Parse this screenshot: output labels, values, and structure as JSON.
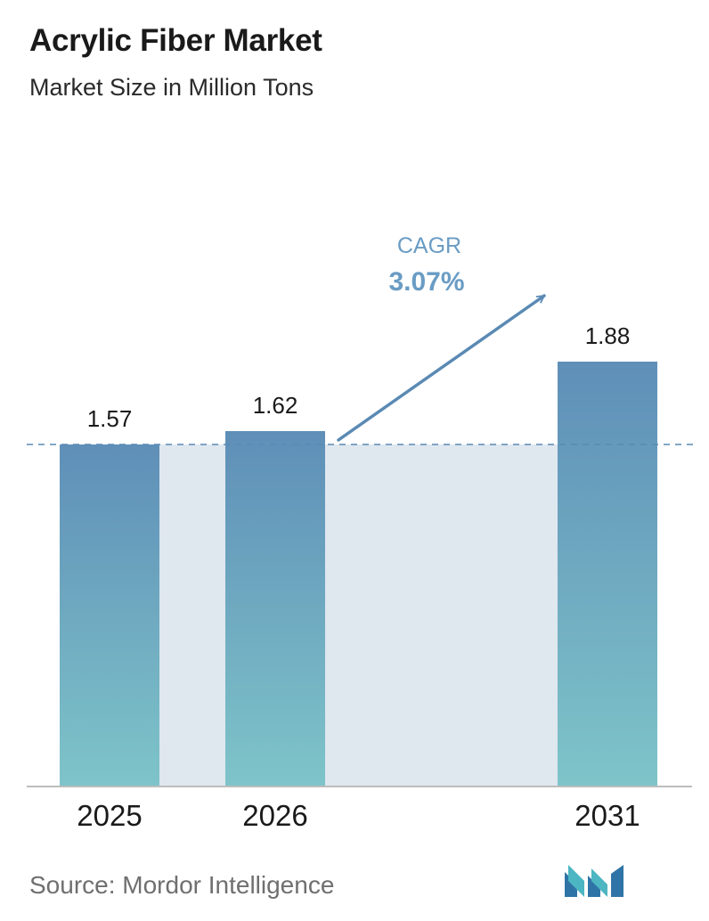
{
  "header": {
    "title": "Acrylic Fiber Market",
    "subtitle": "Market Size in Million Tons"
  },
  "chart_data": {
    "type": "bar",
    "categories": [
      "2025",
      "2026",
      "2031"
    ],
    "values": [
      1.57,
      1.62,
      1.88
    ],
    "value_labels": [
      "1.57",
      "1.62",
      "1.88"
    ],
    "title": "Acrylic Fiber Market",
    "subtitle": "Market Size in Million Tons",
    "xlabel": "",
    "ylabel": "",
    "grid": false,
    "reference_line": 1.57,
    "annotation": {
      "label": "CAGR",
      "value": "3.07%"
    },
    "colors": {
      "bar_top": "#5f8fb8",
      "bar_bottom": "#7ec4c9",
      "band": "#dfe7ef",
      "arrow": "#5a8ab4",
      "cagr_label": "#6a9cc4",
      "axis": "#bdbdbd"
    }
  },
  "footer": {
    "source": "Source:  Mordor Intelligence",
    "logo_icon": "mordor-intelligence-logo-icon"
  }
}
